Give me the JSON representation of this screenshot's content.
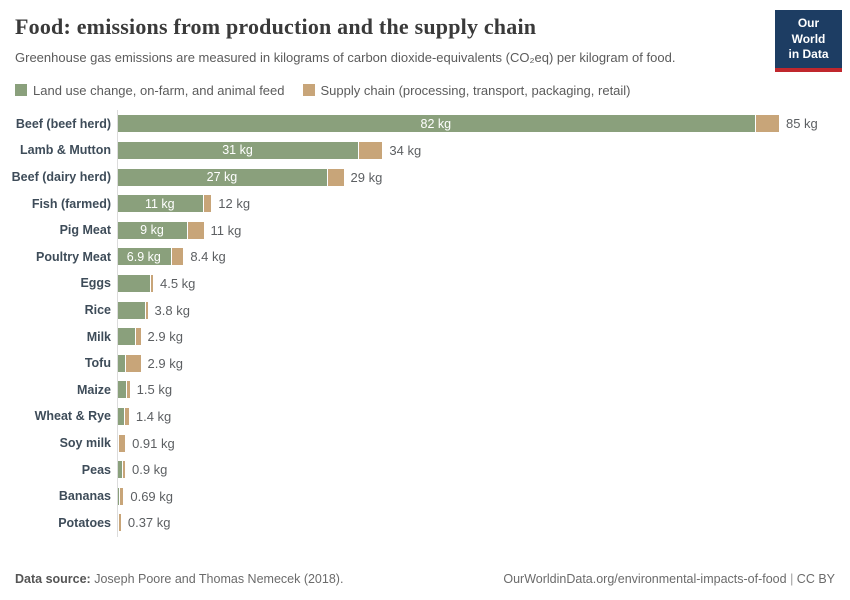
{
  "header": {
    "title": "Food: emissions from production and the supply chain",
    "subtitle": "Greenhouse gas emissions are measured in kilograms of carbon dioxide-equivalents (CO₂eq) per kilogram of food.",
    "logo_line1": "Our World",
    "logo_line2": "in Data",
    "logo_bg_color": "#1d3d63",
    "logo_accent_color": "#c0272d"
  },
  "legend": {
    "items": [
      {
        "label": "Land use change, on-farm, and animal feed",
        "color": "#8AA07C"
      },
      {
        "label": "Supply chain (processing, transport, packaging, retail)",
        "color": "#C8A579"
      }
    ]
  },
  "chart_data": {
    "type": "bar",
    "orientation": "horizontal",
    "stacked": true,
    "title": "Food: emissions from production and the supply chain",
    "xlabel": "",
    "ylabel": "",
    "unit": "kg CO₂eq per kilogram of food",
    "xlim": [
      0,
      85
    ],
    "grid": false,
    "legend_position": "top",
    "series": [
      {
        "name": "Land use change, on-farm, and animal feed",
        "color": "#8AA07C"
      },
      {
        "name": "Supply chain (processing, transport, packaging, retail)",
        "color": "#C8A579"
      }
    ],
    "rows": [
      {
        "category": "Beef (beef herd)",
        "production": 82,
        "supply_chain": 3,
        "total": 85,
        "inside_label": "82 kg",
        "total_label": "85 kg"
      },
      {
        "category": "Lamb & Mutton",
        "production": 31,
        "supply_chain": 3,
        "total": 34,
        "inside_label": "31 kg",
        "total_label": "34 kg"
      },
      {
        "category": "Beef (dairy herd)",
        "production": 27,
        "supply_chain": 2,
        "total": 29,
        "inside_label": "27 kg",
        "total_label": "29 kg"
      },
      {
        "category": "Fish (farmed)",
        "production": 11,
        "supply_chain": 1,
        "total": 12,
        "inside_label": "11 kg",
        "total_label": "12 kg"
      },
      {
        "category": "Pig Meat",
        "production": 9,
        "supply_chain": 2,
        "total": 11,
        "inside_label": "9 kg",
        "total_label": "11 kg"
      },
      {
        "category": "Poultry Meat",
        "production": 6.9,
        "supply_chain": 1.5,
        "total": 8.4,
        "inside_label": "6.9 kg",
        "total_label": "8.4 kg"
      },
      {
        "category": "Eggs",
        "production": 4.2,
        "supply_chain": 0.3,
        "total": 4.5,
        "inside_label": null,
        "total_label": "4.5 kg"
      },
      {
        "category": "Rice",
        "production": 3.6,
        "supply_chain": 0.2,
        "total": 3.8,
        "inside_label": null,
        "total_label": "3.8 kg"
      },
      {
        "category": "Milk",
        "production": 2.3,
        "supply_chain": 0.6,
        "total": 2.9,
        "inside_label": null,
        "total_label": "2.9 kg"
      },
      {
        "category": "Tofu",
        "production": 1.0,
        "supply_chain": 1.9,
        "total": 2.9,
        "inside_label": null,
        "total_label": "2.9 kg"
      },
      {
        "category": "Maize",
        "production": 1.1,
        "supply_chain": 0.4,
        "total": 1.5,
        "inside_label": null,
        "total_label": "1.5 kg"
      },
      {
        "category": "Wheat & Rye",
        "production": 0.9,
        "supply_chain": 0.5,
        "total": 1.4,
        "inside_label": null,
        "total_label": "1.4 kg"
      },
      {
        "category": "Soy milk",
        "production": 0.16,
        "supply_chain": 0.75,
        "total": 0.91,
        "inside_label": null,
        "total_label": "0.91 kg"
      },
      {
        "category": "Peas",
        "production": 0.7,
        "supply_chain": 0.2,
        "total": 0.9,
        "inside_label": null,
        "total_label": "0.9 kg"
      },
      {
        "category": "Bananas",
        "production": 0.3,
        "supply_chain": 0.39,
        "total": 0.69,
        "inside_label": null,
        "total_label": "0.69 kg"
      },
      {
        "category": "Potatoes",
        "production": 0.15,
        "supply_chain": 0.22,
        "total": 0.37,
        "inside_label": null,
        "total_label": "0.37 kg"
      }
    ]
  },
  "footer": {
    "source_label": "Data source:",
    "source_text": " Joseph Poore and Thomas Nemecek (2018).",
    "url": "OurWorldinData.org/environmental-impacts-of-food",
    "separator": " | ",
    "license": "CC BY"
  }
}
